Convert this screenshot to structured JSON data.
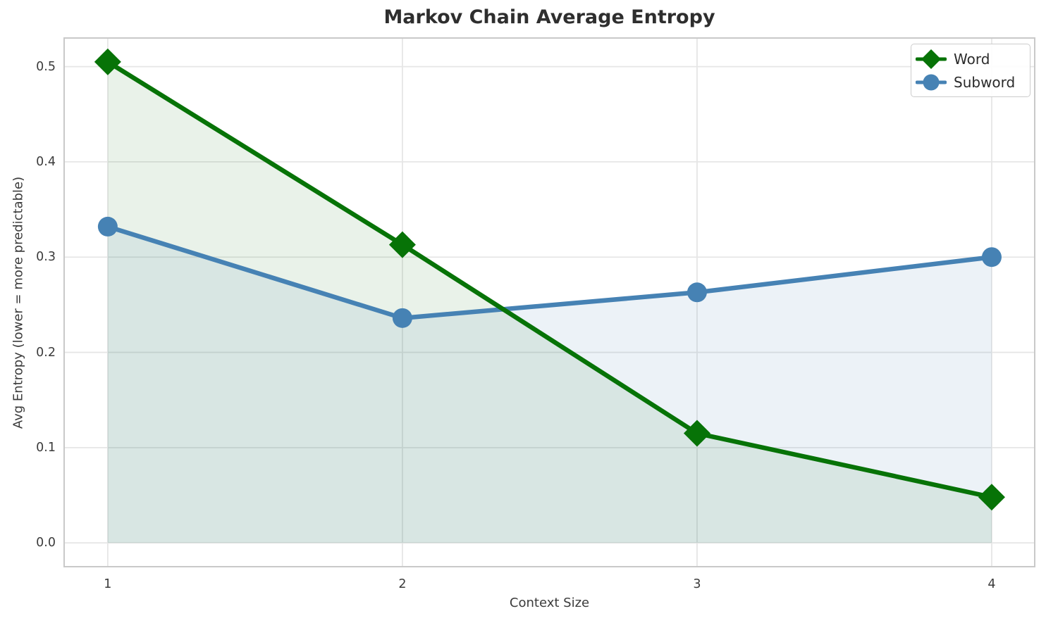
{
  "chart_data": {
    "type": "line",
    "title": "Markov Chain Average Entropy",
    "xlabel": "Context Size",
    "ylabel": "Avg Entropy (lower = more predictable)",
    "x": [
      1,
      2,
      3,
      4
    ],
    "series": [
      {
        "name": "Word",
        "values": [
          0.505,
          0.313,
          0.115,
          0.048
        ],
        "color": "#077307",
        "marker": "diamond",
        "fill_to_zero": true,
        "fill_opacity": 0.09
      },
      {
        "name": "Subword",
        "values": [
          0.332,
          0.236,
          0.263,
          0.3
        ],
        "color": "#4682b4",
        "marker": "circle",
        "fill_to_zero": true,
        "fill_opacity": 0.1
      }
    ],
    "xtick_values": [
      1,
      2,
      3,
      4
    ],
    "xtick_labels": [
      "1",
      "2",
      "3",
      "4"
    ],
    "ytick_values": [
      0.0,
      0.1,
      0.2,
      0.3,
      0.4,
      0.5
    ],
    "ytick_labels": [
      "0.0",
      "0.1",
      "0.2",
      "0.3",
      "0.4",
      "0.5"
    ],
    "xlim": [
      0.852,
      4.146
    ],
    "ylim": [
      -0.025,
      0.53
    ],
    "grid": true,
    "legend_position": "upper right"
  },
  "style": {
    "grid_color": "#e6e6e6",
    "spine_color": "#c9c9c9",
    "text_color": "#3b3b3b",
    "title_color": "#2e2e2e",
    "background": "#ffffff"
  }
}
